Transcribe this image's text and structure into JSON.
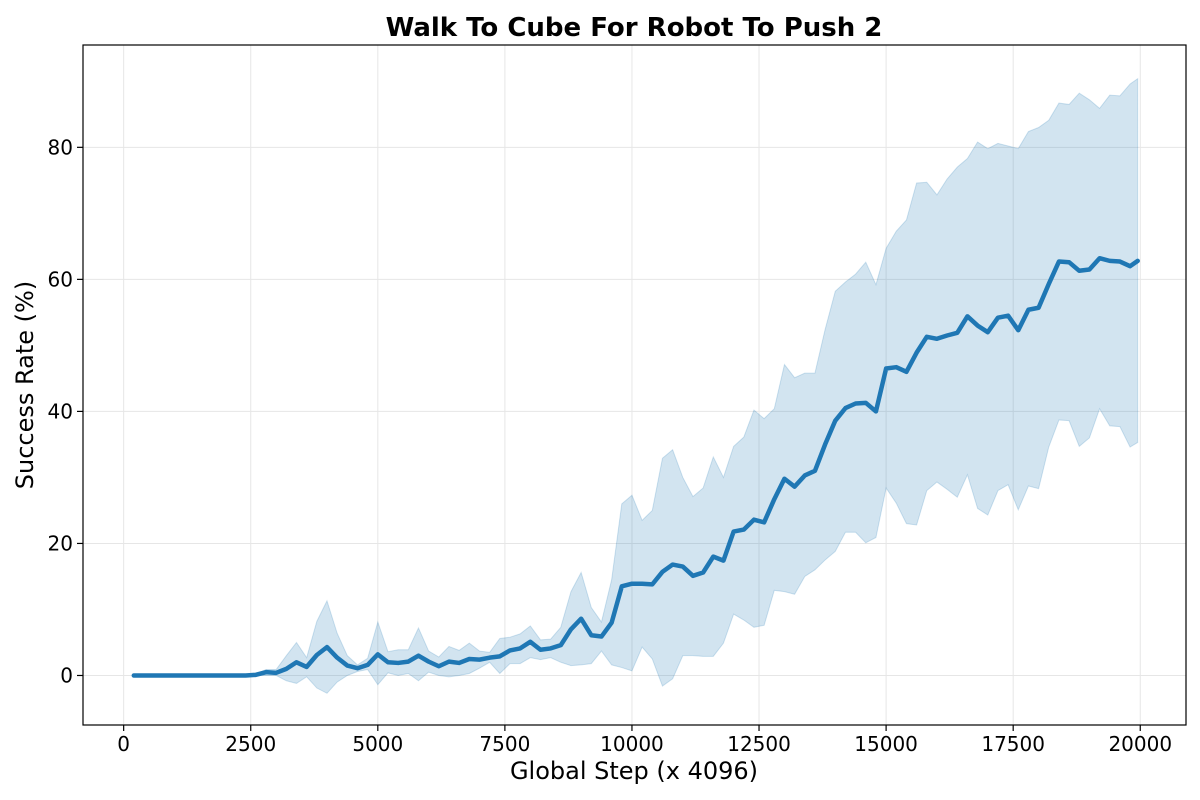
{
  "chart_data": {
    "type": "line",
    "title": "Walk To Cube For Robot To Push 2",
    "xlabel": "Global Step (x 4096)",
    "ylabel": "Success Rate (%)",
    "xlim": [
      -800,
      20900
    ],
    "ylim": [
      -7.5,
      95.5
    ],
    "xticks": [
      0,
      2500,
      5000,
      7500,
      10000,
      12500,
      15000,
      17500,
      20000
    ],
    "xtick_labels": [
      "0",
      "2500",
      "5000",
      "7500",
      "10000",
      "12500",
      "15000",
      "17500",
      "20000"
    ],
    "yticks": [
      0,
      20,
      40,
      60,
      80
    ],
    "ytick_labels": [
      "0",
      "20",
      "40",
      "60",
      "80"
    ],
    "grid": true,
    "colors": {
      "line": "#1f77b4",
      "band": "#1f77b4",
      "grid": "#e6e6e6"
    },
    "series": [
      {
        "x": [
          200,
          400,
          600,
          800,
          1000,
          1200,
          1400,
          1600,
          1800,
          2000,
          2200,
          2400,
          2600,
          2800,
          3000,
          3200,
          3400,
          3600,
          3800,
          4000,
          4200,
          4400,
          4600,
          4800,
          5000,
          5200,
          5400,
          5600,
          5800,
          6000,
          6200,
          6400,
          6600,
          6800,
          7000,
          7200,
          7400,
          7600,
          7800,
          8000,
          8200,
          8400,
          8600,
          8800,
          9000,
          9200,
          9400,
          9600,
          9800,
          10000,
          10200,
          10400,
          10600,
          10800,
          11000,
          11200,
          11400,
          11600,
          11800,
          12000,
          12200,
          12400,
          12600,
          12800,
          13000,
          13200,
          13400,
          13600,
          13800,
          14000,
          14200,
          14400,
          14600,
          14800,
          15000,
          15200,
          15400,
          15600,
          15800,
          16000,
          16200,
          16400,
          16600,
          16800,
          17000,
          17200,
          17400,
          17600,
          17800,
          18000,
          18200,
          18400,
          18600,
          18800,
          19000,
          19200,
          19400,
          19600,
          19800,
          19950
        ],
        "y": [
          0,
          0,
          0,
          0,
          0,
          0,
          0,
          0,
          0,
          0,
          0,
          0,
          0.1,
          0.5,
          0.4,
          1.0,
          2.0,
          1.3,
          3.1,
          4.3,
          2.7,
          1.5,
          1.1,
          1.6,
          3.2,
          2.0,
          1.9,
          2.1,
          3.0,
          2.1,
          1.4,
          2.1,
          1.9,
          2.5,
          2.4,
          2.7,
          2.9,
          3.8,
          4.1,
          5.1,
          3.9,
          4.1,
          4.6,
          7.0,
          8.6,
          6.1,
          5.9,
          8.0,
          13.5,
          13.9,
          13.9,
          13.8,
          15.7,
          16.8,
          16.5,
          15.1,
          15.6,
          18.0,
          17.4,
          21.8,
          22.1,
          23.6,
          23.2,
          26.7,
          29.8,
          28.6,
          30.3,
          31.0,
          35.0,
          38.6,
          40.5,
          41.2,
          41.3,
          40.0,
          46.5,
          46.7,
          46.0,
          48.9,
          51.3,
          51.0,
          51.5,
          51.9,
          54.4,
          53.0,
          52.0,
          54.2,
          54.5,
          52.3,
          55.4,
          55.7,
          59.3,
          62.7,
          62.6,
          61.3,
          61.5,
          63.2,
          62.8,
          62.7,
          62.0,
          62.8
        ]
      }
    ],
    "band": {
      "lower": [
        0,
        0,
        0,
        0,
        0,
        0,
        0,
        0,
        0,
        0,
        0,
        0,
        0,
        0,
        0,
        -0.8,
        -1.2,
        -0.2,
        -1.9,
        -2.7,
        -1.0,
        0,
        0.6,
        0.9,
        -1.4,
        0.4,
        0,
        0.3,
        -0.8,
        0.5,
        0,
        -0.2,
        0,
        0.3,
        1.1,
        2.0,
        0.3,
        1.8,
        1.8,
        2.7,
        2.4,
        2.7,
        2.0,
        1.5,
        1.6,
        1.8,
        3.7,
        1.6,
        1.2,
        0.7,
        4.3,
        2.5,
        -1.6,
        -0.5,
        3.0,
        3.0,
        2.9,
        2.9,
        4.9,
        9.3,
        8.4,
        7.3,
        7.6,
        12.9,
        12.7,
        12.3,
        15.0,
        16.0,
        17.5,
        18.8,
        21.7,
        21.7,
        20.1,
        20.9,
        28.4,
        26.1,
        23.0,
        22.8,
        28.0,
        29.3,
        28.2,
        27.0,
        30.4,
        25.3,
        24.3,
        28.0,
        28.9,
        25.1,
        28.7,
        28.3,
        34.6,
        38.7,
        38.6,
        34.7,
        36.0,
        40.4,
        37.8,
        37.7,
        34.6,
        35.3
      ],
      "upper": [
        0,
        0,
        0,
        0,
        0,
        0,
        0,
        0,
        0,
        0,
        0,
        0,
        0.2,
        0.9,
        0.9,
        3.0,
        5.0,
        2.7,
        8.2,
        11.3,
        6.4,
        3.0,
        1.6,
        2.6,
        8.1,
        3.6,
        3.9,
        3.9,
        7.2,
        3.7,
        2.8,
        4.4,
        3.8,
        4.9,
        3.7,
        3.5,
        5.6,
        5.8,
        6.3,
        7.5,
        5.4,
        5.5,
        7.3,
        12.7,
        15.6,
        10.3,
        8.1,
        14.5,
        26.0,
        27.3,
        23.5,
        25.0,
        32.9,
        34.2,
        30.0,
        27.1,
        28.4,
        33.1,
        30.0,
        34.7,
        36.1,
        40.2,
        38.9,
        40.4,
        47.1,
        45.1,
        45.8,
        45.8,
        52.4,
        58.2,
        59.6,
        60.8,
        62.6,
        59.2,
        64.7,
        67.3,
        69.0,
        74.6,
        74.7,
        72.8,
        75.2,
        77.0,
        78.3,
        80.8,
        79.8,
        80.6,
        80.2,
        79.8,
        82.4,
        83.0,
        84.1,
        86.7,
        86.5,
        88.2,
        87.2,
        85.9,
        87.9,
        87.8,
        89.6,
        90.4
      ]
    }
  }
}
